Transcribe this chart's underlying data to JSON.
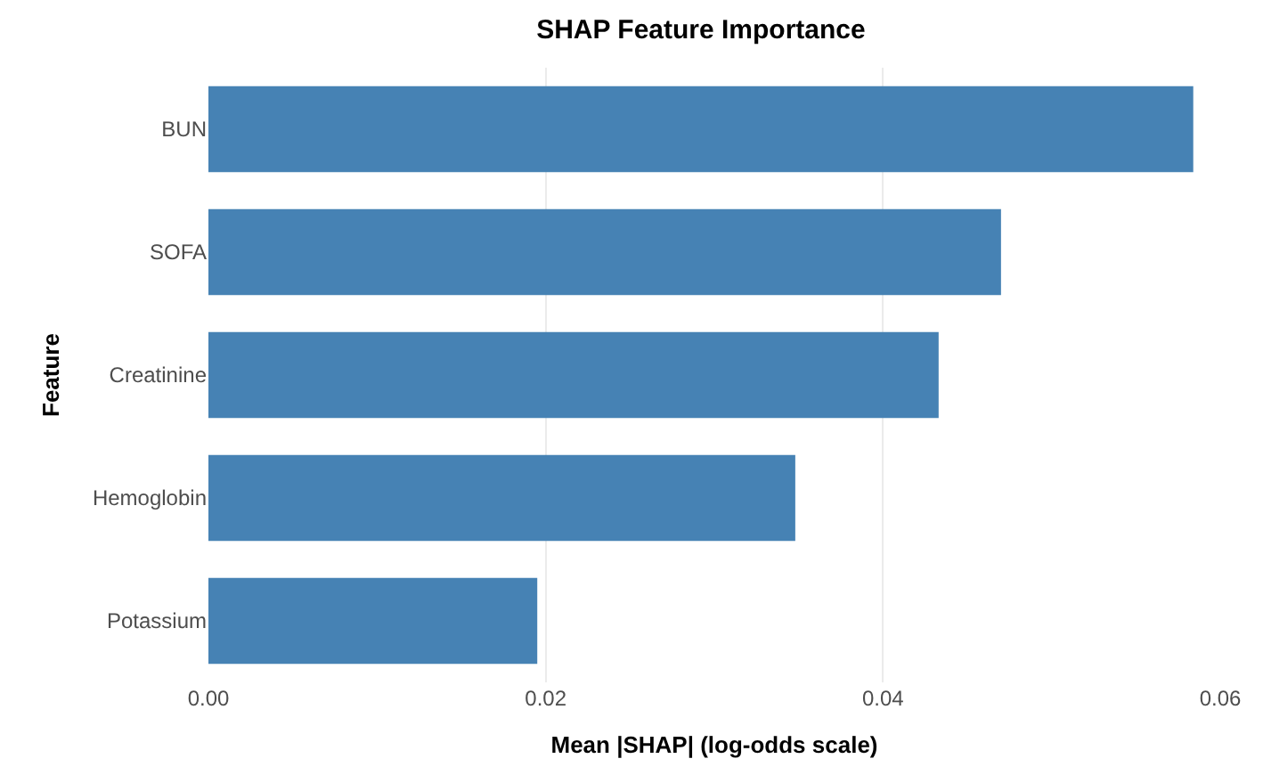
{
  "chart_data": {
    "type": "bar",
    "title": "SHAP Feature Importance",
    "orientation": "horizontal",
    "categories": [
      "BUN",
      "SOFA",
      "Creatinine",
      "Hemoglobin",
      "Potassium"
    ],
    "values": [
      0.0584,
      0.047,
      0.0433,
      0.0348,
      0.0195
    ],
    "color": "#4682b4",
    "xlabel": "Mean |SHAP| (log-odds scale)",
    "ylabel": "Feature",
    "xlim": [
      0,
      0.06
    ],
    "xticks": [
      {
        "value": 0,
        "label": "0.00"
      },
      {
        "value": 0.02,
        "label": "0.02"
      },
      {
        "value": 0.04,
        "label": "0.04"
      },
      {
        "value": 0.06,
        "label": "0.06"
      }
    ],
    "grid": "x"
  }
}
